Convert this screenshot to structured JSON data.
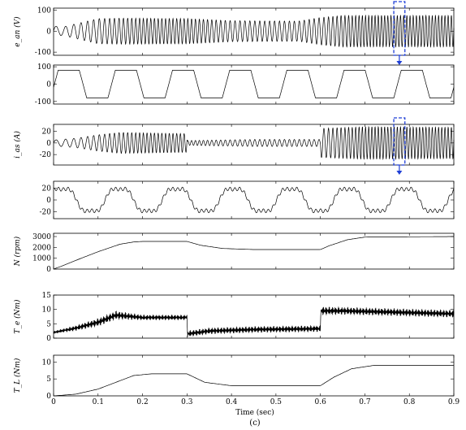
{
  "caption": "(c)",
  "x_axis": {
    "label": "Time (sec)",
    "range": [
      0,
      0.9
    ],
    "ticks": [
      "0",
      "0.1",
      "0.2",
      "0.3",
      "0.4",
      "0.5",
      "0.6",
      "0.7",
      "0.8",
      "0.9"
    ]
  },
  "colors": {
    "trace": "#000000",
    "highlight": "#1f3fd6"
  },
  "chart_data": [
    {
      "type": "line",
      "ylabel": "e_an (V)",
      "ylim": [
        -115,
        110
      ],
      "yticks": [
        "100",
        "0",
        "-100"
      ],
      "waveform": "sinusoid",
      "envelope": {
        "t": [
          0,
          0.02,
          0.05,
          0.1,
          0.15,
          0.3,
          0.4,
          0.55,
          0.6,
          0.65,
          0.9
        ],
        "amp": [
          25,
          20,
          35,
          60,
          62,
          60,
          50,
          48,
          65,
          75,
          75
        ]
      },
      "freq_hz": {
        "t": [
          0,
          0.2,
          0.3,
          0.4,
          0.6,
          0.7,
          0.9
        ],
        "f": [
          40,
          120,
          120,
          90,
          90,
          140,
          140
        ]
      },
      "zoom_box": {
        "t": [
          0.765,
          0.79
        ]
      }
    },
    {
      "type": "line",
      "ylabel": "",
      "ylim": [
        -115,
        110
      ],
      "yticks": [
        "100",
        "0",
        "-100"
      ],
      "waveform": "trapezoid",
      "amplitude": 80,
      "cycles": 7
    },
    {
      "type": "line",
      "ylabel": "i_as (A)",
      "ylim": [
        -38,
        32
      ],
      "yticks": [
        "20",
        "0",
        "-20"
      ],
      "waveform": "sinusoid",
      "envelope": {
        "t": [
          0,
          0.05,
          0.1,
          0.15,
          0.3,
          0.301,
          0.45,
          0.6,
          0.601,
          0.7,
          0.9
        ],
        "amp": [
          5,
          8,
          14,
          18,
          16,
          4,
          6,
          6,
          25,
          28,
          27
        ]
      },
      "freq_hz": {
        "t": [
          0,
          0.2,
          0.3,
          0.4,
          0.6,
          0.7,
          0.9
        ],
        "f": [
          40,
          120,
          120,
          90,
          90,
          140,
          140
        ]
      },
      "zoom_box": {
        "t": [
          0.765,
          0.79
        ]
      }
    },
    {
      "type": "line",
      "ylabel": "",
      "ylim": [
        -32,
        32
      ],
      "yticks": [
        "20",
        "0",
        "-20"
      ],
      "waveform": "six-step current",
      "amplitude": 22,
      "cycles": 7
    },
    {
      "type": "line",
      "ylabel": "N (rpm)",
      "ylim": [
        0,
        3300
      ],
      "yticks": [
        "3000",
        "2000",
        "1000",
        "0"
      ],
      "x": [
        0,
        0.02,
        0.05,
        0.1,
        0.15,
        0.18,
        0.2,
        0.3,
        0.33,
        0.38,
        0.45,
        0.6,
        0.62,
        0.66,
        0.7,
        0.9
      ],
      "y": [
        0,
        300,
        800,
        1600,
        2300,
        2500,
        2550,
        2550,
        2200,
        1900,
        1800,
        1800,
        2150,
        2700,
        2950,
        3000
      ]
    },
    {
      "type": "line",
      "ylabel": "T_e (Nm)",
      "ylim": [
        0,
        15
      ],
      "yticks": [
        "15",
        "10",
        "5",
        "0"
      ],
      "x": [
        0,
        0.05,
        0.1,
        0.14,
        0.2,
        0.3,
        0.301,
        0.35,
        0.45,
        0.6,
        0.601,
        0.65,
        0.9
      ],
      "y": [
        2,
        3.5,
        5.5,
        8,
        7.2,
        7.2,
        1.5,
        2.5,
        3,
        3.3,
        9.5,
        9.5,
        8.5
      ],
      "ripple": [
        0.5,
        1,
        1.5,
        1.6,
        1,
        1,
        1.2,
        1.2,
        1.2,
        1.2,
        1.6,
        1.4,
        1.4
      ]
    },
    {
      "type": "line",
      "ylabel": "T_L (Nm)",
      "ylim": [
        0,
        12
      ],
      "yticks": [
        "10",
        "5",
        "0"
      ],
      "x": [
        0,
        0.05,
        0.1,
        0.15,
        0.18,
        0.22,
        0.3,
        0.34,
        0.4,
        0.6,
        0.63,
        0.67,
        0.72,
        0.9
      ],
      "y": [
        0,
        0.5,
        2,
        4.5,
        6,
        6.5,
        6.5,
        4,
        3,
        3,
        5.5,
        8,
        9,
        9
      ]
    }
  ]
}
